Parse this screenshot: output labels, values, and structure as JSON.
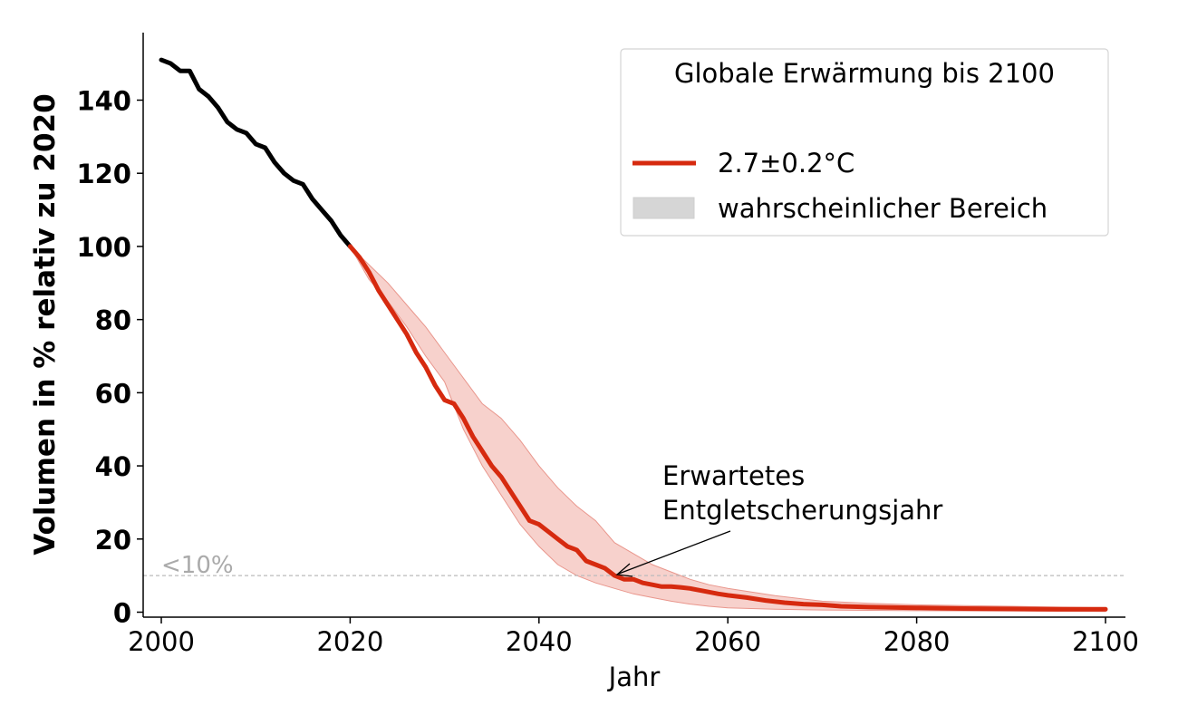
{
  "chart_data": {
    "type": "line",
    "xlabel": "Jahr",
    "ylabel": "Volumen in % relativ zu 2020",
    "xlim": [
      1998,
      2102
    ],
    "ylim": [
      -1,
      158
    ],
    "xticks": [
      2000,
      2020,
      2040,
      2060,
      2080,
      2100
    ],
    "yticks": [
      0,
      20,
      40,
      60,
      80,
      100,
      120,
      140
    ],
    "legend": {
      "title": "Globale Erwärmung bis 2100",
      "position": "top-right",
      "entries": [
        "2.7±0.2°C",
        "wahrscheinlicher Bereich"
      ]
    },
    "threshold": {
      "y": 10,
      "label": "<10%",
      "style": "dashed"
    },
    "annotation": {
      "text_lines": [
        "Erwartetes",
        "Entgletscherungsjahr"
      ],
      "x": 2048,
      "y": 10
    },
    "colors": {
      "historical": "#000000",
      "projection": "#d62a0f",
      "range": "#f3b9b1",
      "range_edge": "#e9968c",
      "threshold": "#bbbbbb",
      "legend_patch": "#d6d6d6"
    },
    "series": [
      {
        "name": "historical",
        "x": [
          2000,
          2001,
          2002,
          2003,
          2004,
          2005,
          2006,
          2007,
          2008,
          2009,
          2010,
          2011,
          2012,
          2013,
          2014,
          2015,
          2016,
          2017,
          2018,
          2019,
          2020
        ],
        "values": [
          151,
          150,
          148,
          148,
          143,
          141,
          138,
          134,
          132,
          131,
          128,
          127,
          123,
          120,
          118,
          117,
          113,
          110,
          107,
          103,
          100
        ]
      },
      {
        "name": "2.7±0.2°C",
        "x": [
          2020,
          2021,
          2022,
          2023,
          2024,
          2025,
          2026,
          2027,
          2028,
          2029,
          2030,
          2031,
          2032,
          2033,
          2034,
          2035,
          2036,
          2037,
          2038,
          2039,
          2040,
          2041,
          2042,
          2043,
          2044,
          2045,
          2046,
          2047,
          2048,
          2049,
          2050,
          2051,
          2052,
          2053,
          2054,
          2055,
          2056,
          2057,
          2058,
          2059,
          2060,
          2062,
          2064,
          2066,
          2068,
          2070,
          2072,
          2075,
          2080,
          2085,
          2090,
          2095,
          2100
        ],
        "values": [
          100,
          97,
          93,
          88,
          84,
          80,
          76,
          71,
          67,
          62,
          58,
          57,
          53,
          48,
          44,
          40,
          37,
          33,
          29,
          25,
          24,
          22,
          20,
          18,
          17,
          14,
          13,
          12,
          10,
          9,
          9,
          8,
          7.5,
          7,
          7,
          6.8,
          6.5,
          6,
          5.5,
          5,
          4.6,
          4,
          3.2,
          2.6,
          2.2,
          2.0,
          1.6,
          1.4,
          1.2,
          1.0,
          0.9,
          0.8,
          0.8
        ]
      },
      {
        "name": "wahrscheinlicher Bereich",
        "x": [
          2020,
          2022,
          2024,
          2026,
          2028,
          2030,
          2032,
          2034,
          2036,
          2038,
          2040,
          2042,
          2044,
          2046,
          2048,
          2050,
          2052,
          2054,
          2056,
          2058,
          2060,
          2065,
          2070,
          2075,
          2080,
          2090,
          2100
        ],
        "upper": [
          100,
          95,
          90,
          84,
          78,
          71,
          64,
          57,
          53,
          47,
          40,
          34,
          29,
          25,
          19,
          16,
          13,
          11,
          9,
          7.5,
          6.5,
          4.5,
          3,
          2.4,
          2.0,
          1.6,
          1.2
        ],
        "lower": [
          100,
          91,
          85,
          78,
          70,
          63,
          50,
          40,
          32,
          24,
          18,
          13,
          10,
          8,
          6.5,
          5,
          4,
          3,
          2.2,
          1.6,
          1.2,
          0.8,
          0.6,
          0.5,
          0.4,
          0.3,
          0.2
        ]
      }
    ]
  }
}
